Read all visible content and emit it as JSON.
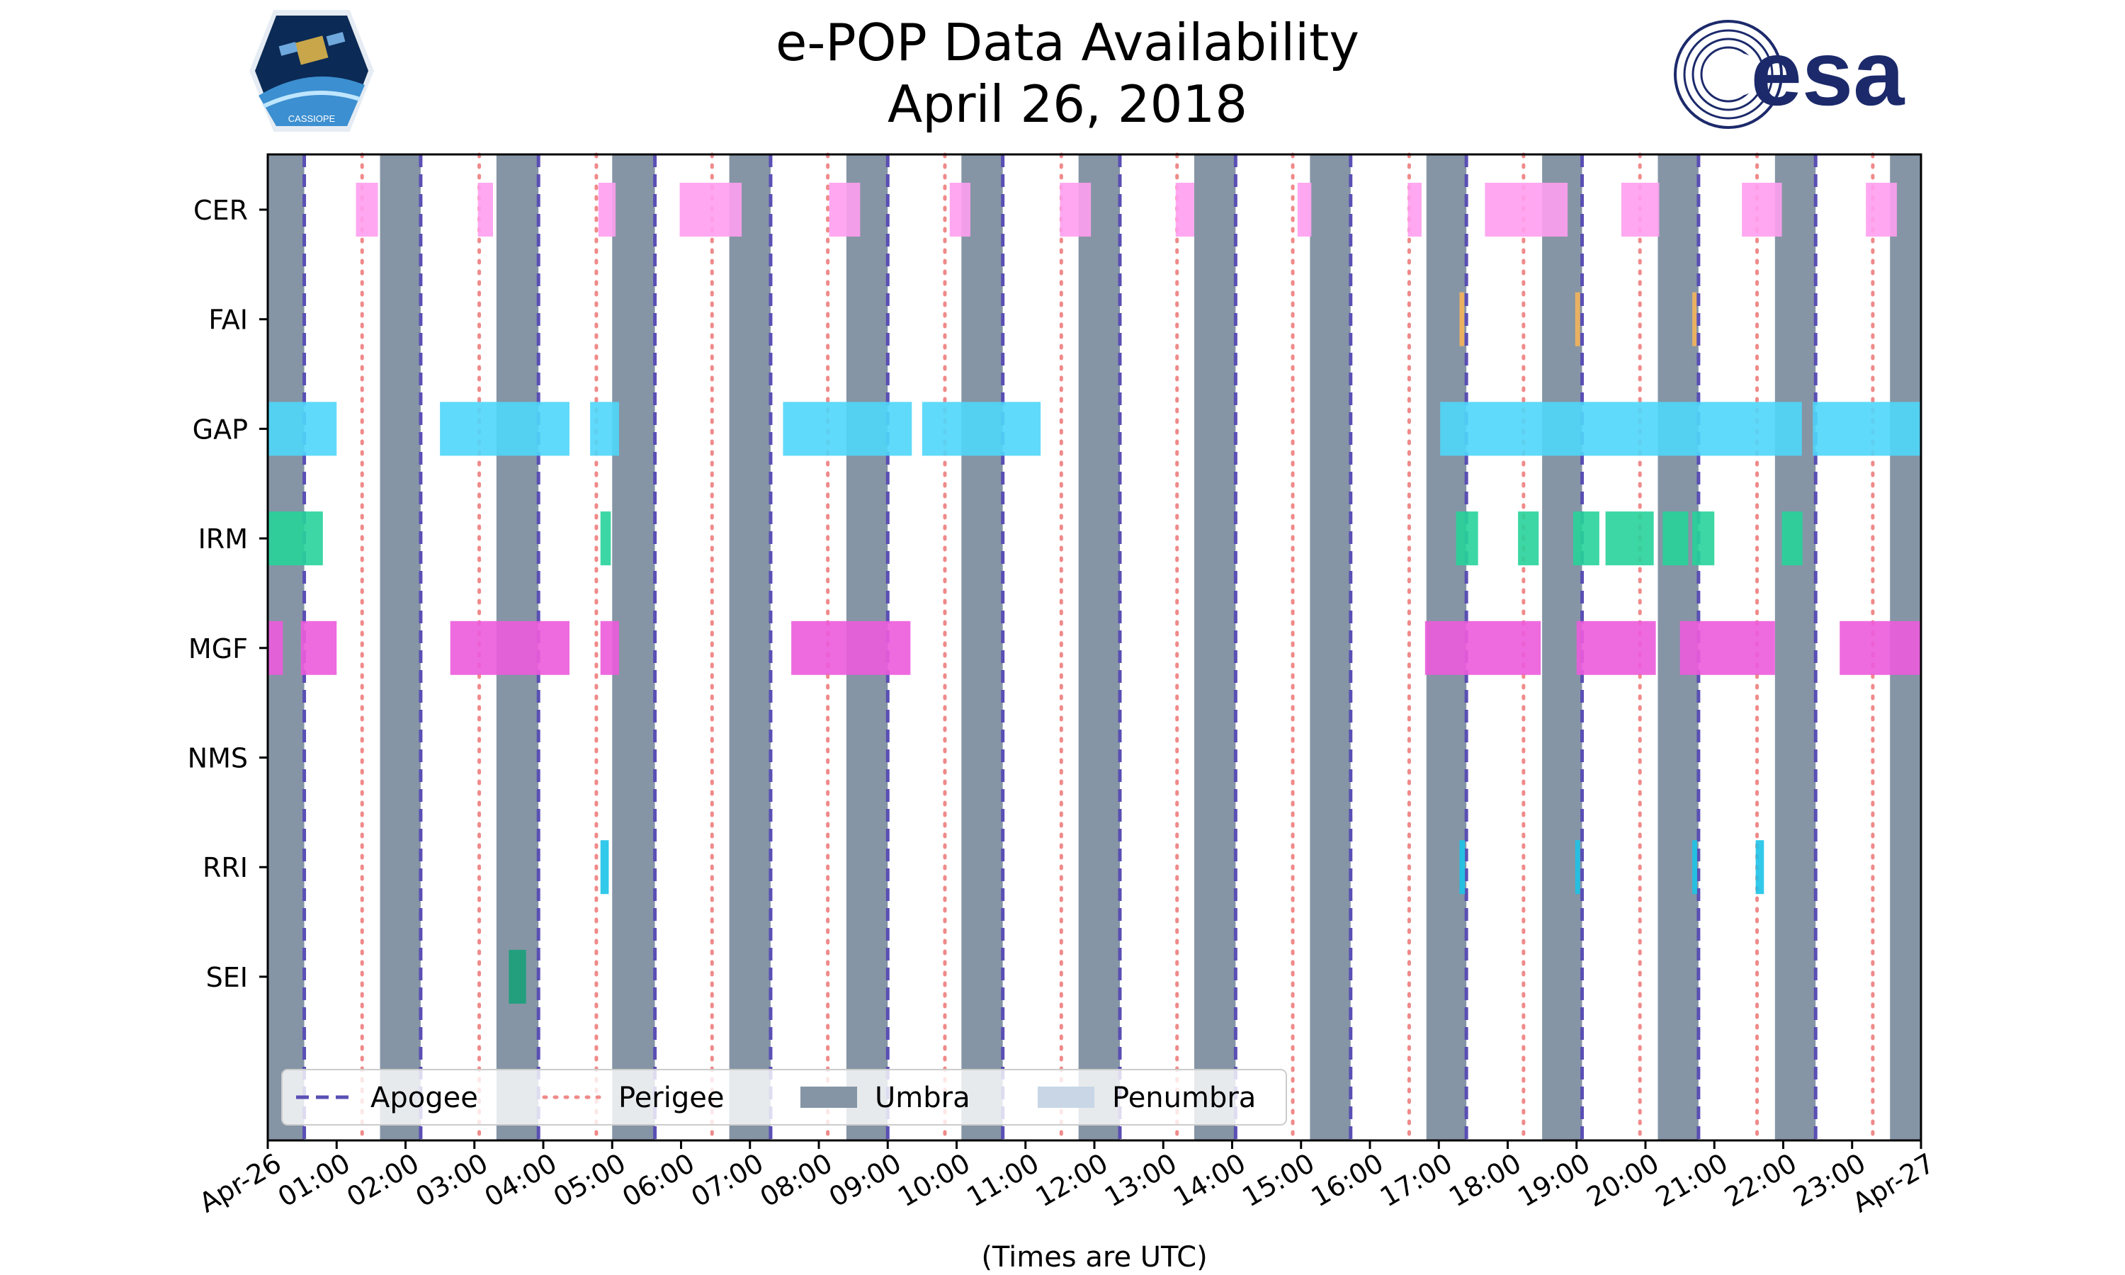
{
  "chart_data": {
    "type": "timeline",
    "title_line1": "e-POP Data Availability",
    "title_line2": "April 26, 2018",
    "xlabel": "(Times are UTC)",
    "x_range_hours": [
      0,
      24
    ],
    "x_ticks": [
      {
        "h": 0,
        "label": "Apr-26"
      },
      {
        "h": 1,
        "label": "01:00"
      },
      {
        "h": 2,
        "label": "02:00"
      },
      {
        "h": 3,
        "label": "03:00"
      },
      {
        "h": 4,
        "label": "04:00"
      },
      {
        "h": 5,
        "label": "05:00"
      },
      {
        "h": 6,
        "label": "06:00"
      },
      {
        "h": 7,
        "label": "07:00"
      },
      {
        "h": 8,
        "label": "08:00"
      },
      {
        "h": 9,
        "label": "09:00"
      },
      {
        "h": 10,
        "label": "10:00"
      },
      {
        "h": 11,
        "label": "11:00"
      },
      {
        "h": 12,
        "label": "12:00"
      },
      {
        "h": 13,
        "label": "13:00"
      },
      {
        "h": 14,
        "label": "14:00"
      },
      {
        "h": 15,
        "label": "15:00"
      },
      {
        "h": 16,
        "label": "16:00"
      },
      {
        "h": 17,
        "label": "17:00"
      },
      {
        "h": 18,
        "label": "18:00"
      },
      {
        "h": 19,
        "label": "19:00"
      },
      {
        "h": 20,
        "label": "20:00"
      },
      {
        "h": 21,
        "label": "21:00"
      },
      {
        "h": 22,
        "label": "22:00"
      },
      {
        "h": 23,
        "label": "23:00"
      },
      {
        "h": 24,
        "label": "Apr-27"
      }
    ],
    "instruments": [
      "CER",
      "FAI",
      "GAP",
      "IRM",
      "MGF",
      "NMS",
      "RRI",
      "SEI"
    ],
    "colors": {
      "CER": "#ff9ff0",
      "FAI": "#f5b45a",
      "GAP": "#4fd6fa",
      "IRM": "#27d39a",
      "MGF": "#ec5bdc",
      "NMS": "#999999",
      "RRI": "#1cc3e8",
      "SEI": "#1aa07a",
      "umbra": "#8595a5",
      "penumbra": "#c8d6e6",
      "apogee": "#5a4fb4",
      "perigee": "#f08a8a"
    },
    "umbra": [
      [
        0.0,
        0.53
      ],
      [
        1.63,
        2.22
      ],
      [
        3.32,
        3.93
      ],
      [
        5.0,
        5.62
      ],
      [
        6.7,
        7.3
      ],
      [
        8.4,
        9.0
      ],
      [
        10.07,
        10.67
      ],
      [
        11.77,
        12.37
      ],
      [
        13.45,
        14.05
      ],
      [
        15.13,
        15.72
      ],
      [
        16.82,
        17.4
      ],
      [
        18.5,
        19.08
      ],
      [
        20.18,
        20.77
      ],
      [
        21.88,
        22.47
      ],
      [
        23.55,
        24.0
      ]
    ],
    "apogee": [
      0.53,
      2.22,
      3.93,
      5.62,
      7.3,
      9.0,
      10.67,
      12.37,
      14.05,
      15.72,
      17.4,
      19.08,
      20.77,
      22.47
    ],
    "perigee": [
      1.37,
      3.07,
      4.77,
      6.45,
      8.13,
      9.83,
      11.52,
      13.2,
      14.88,
      16.57,
      18.23,
      19.92,
      21.62,
      23.3
    ],
    "bars": {
      "CER": [
        [
          1.28,
          1.6
        ],
        [
          3.05,
          3.27
        ],
        [
          4.8,
          5.05
        ],
        [
          5.98,
          6.88
        ],
        [
          8.15,
          8.6
        ],
        [
          9.9,
          10.2
        ],
        [
          11.5,
          11.95
        ],
        [
          13.18,
          13.45
        ],
        [
          14.95,
          15.15
        ],
        [
          16.55,
          16.75
        ],
        [
          17.67,
          18.87
        ],
        [
          19.65,
          20.2
        ],
        [
          21.4,
          21.98
        ],
        [
          23.2,
          23.65
        ]
      ],
      "FAI": [
        [
          17.3,
          17.37
        ],
        [
          18.98,
          19.05
        ],
        [
          20.68,
          20.74
        ]
      ],
      "GAP": [
        [
          0.0,
          1.0
        ],
        [
          2.5,
          4.38
        ],
        [
          4.68,
          5.1
        ],
        [
          7.48,
          9.35
        ],
        [
          9.5,
          11.22
        ],
        [
          17.02,
          22.27
        ],
        [
          22.43,
          24.0
        ]
      ],
      "IRM": [
        [
          0.0,
          0.8
        ],
        [
          4.83,
          4.98
        ],
        [
          17.25,
          17.57
        ],
        [
          18.15,
          18.45
        ],
        [
          18.95,
          19.33
        ],
        [
          19.42,
          20.12
        ],
        [
          20.25,
          20.62
        ],
        [
          20.68,
          21.0
        ],
        [
          21.98,
          22.28
        ]
      ],
      "MGF": [
        [
          0.0,
          0.22
        ],
        [
          0.48,
          1.0
        ],
        [
          2.65,
          4.38
        ],
        [
          4.83,
          5.1
        ],
        [
          7.6,
          9.33
        ],
        [
          16.8,
          18.48
        ],
        [
          19.0,
          20.15
        ],
        [
          20.5,
          21.88
        ],
        [
          22.82,
          24.0
        ]
      ],
      "NMS": [],
      "RRI": [
        [
          4.83,
          4.95
        ],
        [
          17.3,
          17.38
        ],
        [
          18.98,
          19.05
        ],
        [
          20.68,
          20.75
        ],
        [
          21.6,
          21.72
        ]
      ],
      "SEI": [
        [
          3.5,
          3.75
        ]
      ]
    },
    "legend": {
      "placement": "lower-left",
      "items": [
        {
          "key": "apogee",
          "label": "Apogee",
          "style": "dashed"
        },
        {
          "key": "perigee",
          "label": "Perigee",
          "style": "dotted"
        },
        {
          "key": "umbra",
          "label": "Umbra",
          "style": "patch"
        },
        {
          "key": "penumbra",
          "label": "Penumbra",
          "style": "patch"
        }
      ]
    },
    "logos": [
      "cassiope-badge-icon",
      "esa-logo-icon"
    ],
    "logo_text": {
      "cassiope": "CASSIOPE",
      "esa": "esa"
    }
  }
}
